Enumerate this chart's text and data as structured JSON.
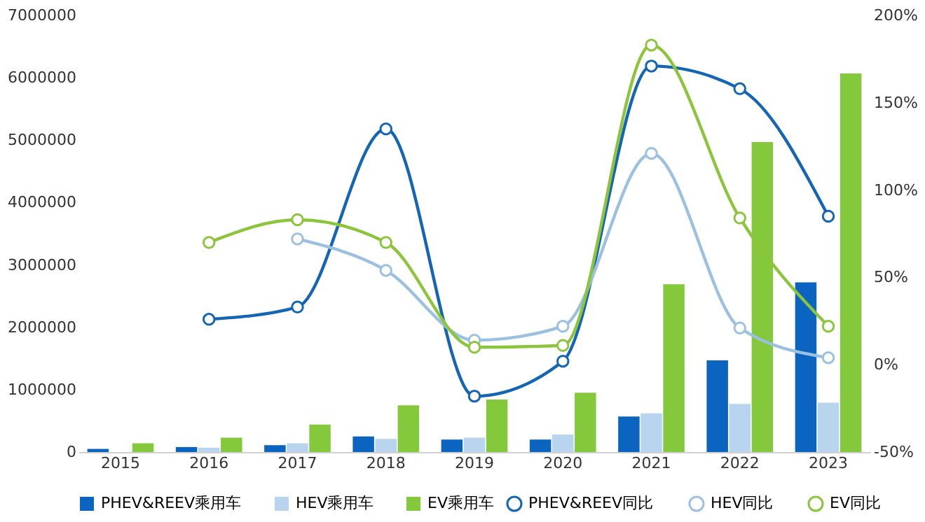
{
  "chart_data": {
    "type": "bar",
    "categories": [
      "2015",
      "2016",
      "2017",
      "2018",
      "2019",
      "2020",
      "2021",
      "2022",
      "2023"
    ],
    "series": [
      {
        "name": "PHEV&REEV乘用车",
        "color": "#0a64c0",
        "values": [
          50000,
          80000,
          110000,
          250000,
          200000,
          200000,
          570000,
          1470000,
          2720000
        ]
      },
      {
        "name": "HEV乘用车",
        "color": "#b8d4ee",
        "values": [
          null,
          70000,
          140000,
          210000,
          230000,
          280000,
          620000,
          770000,
          790000
        ]
      },
      {
        "name": "EV乘用车",
        "color": "#84c83c",
        "values": [
          140000,
          230000,
          440000,
          750000,
          840000,
          950000,
          2690000,
          4970000,
          6070000
        ]
      },
      {
        "name": "PHEV&REEV同比",
        "type": "line",
        "axis": "y2",
        "color": "#1565b5",
        "marker": "circle",
        "values": [
          null,
          26,
          33,
          135,
          -18,
          2,
          171,
          158,
          85
        ]
      },
      {
        "name": "HEV同比",
        "type": "line",
        "axis": "y2",
        "color": "#9cc0e0",
        "marker": "circle",
        "values": [
          null,
          null,
          72,
          54,
          14,
          22,
          121,
          21,
          4
        ]
      },
      {
        "name": "EV同比",
        "type": "line",
        "axis": "y2",
        "color": "#8cc43c",
        "marker": "circle",
        "values": [
          null,
          70,
          83,
          70,
          10,
          11,
          183,
          84,
          22
        ]
      }
    ],
    "ylim": [
      0,
      7000000
    ],
    "yticks": [
      0,
      1000000,
      2000000,
      3000000,
      4000000,
      5000000,
      6000000,
      7000000
    ],
    "y2lim": [
      -50,
      200
    ],
    "y2ticks": [
      {
        "value": -50,
        "label": "-50%"
      },
      {
        "value": 0,
        "label": "0%"
      },
      {
        "value": 50,
        "label": "50%"
      },
      {
        "value": 100,
        "label": "100%"
      },
      {
        "value": 150,
        "label": "150%"
      },
      {
        "value": 200,
        "label": "200%"
      }
    ],
    "grid": false,
    "legend": "bottom",
    "line_style": "solid"
  }
}
